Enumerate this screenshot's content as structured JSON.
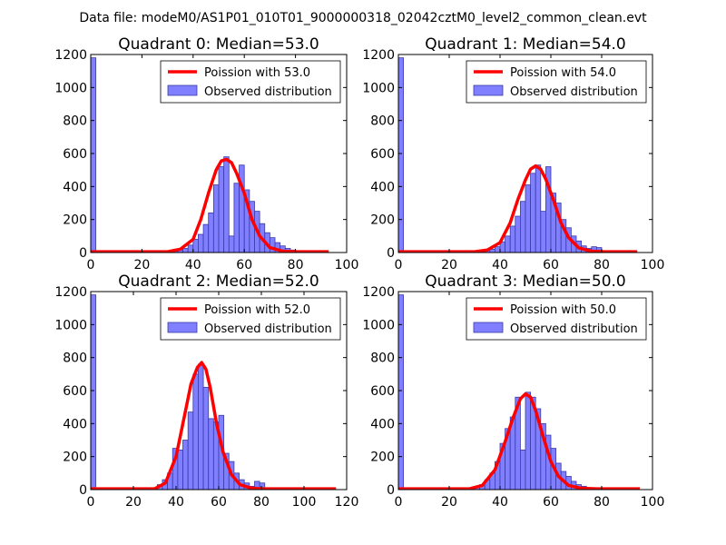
{
  "suptitle": "Data file: modeM0/AS1P01_010T01_9000000318_02042cztM0_level2_common_clean.evt",
  "colors": {
    "bar_fill": "#7f7fff",
    "bar_edge": "#3a3aa8",
    "poisson": "#ff0000"
  },
  "chart_data": [
    {
      "type": "bar",
      "title": "Quadrant 0: Median=53.0",
      "legend": {
        "poisson": "Poission with 53.0",
        "observed": "Observed distribution",
        "placement": "upper right"
      },
      "xlim": [
        0,
        100
      ],
      "ylim": [
        0,
        1200
      ],
      "xticks": [
        "0",
        "20",
        "40",
        "60",
        "80",
        "100"
      ],
      "yticks": [
        "0",
        "200",
        "400",
        "600",
        "800",
        "1000",
        "1200"
      ],
      "bin_width": 2,
      "bins": [
        [
          0,
          1180
        ],
        [
          30,
          5
        ],
        [
          32,
          10
        ],
        [
          34,
          15
        ],
        [
          36,
          25
        ],
        [
          38,
          45
        ],
        [
          40,
          80
        ],
        [
          42,
          110
        ],
        [
          44,
          170
        ],
        [
          46,
          240
        ],
        [
          48,
          410
        ],
        [
          50,
          520
        ],
        [
          52,
          580
        ],
        [
          54,
          100
        ],
        [
          56,
          420
        ],
        [
          58,
          530
        ],
        [
          60,
          380
        ],
        [
          62,
          310
        ],
        [
          64,
          250
        ],
        [
          66,
          175
        ],
        [
          68,
          120
        ],
        [
          70,
          90
        ],
        [
          72,
          60
        ],
        [
          74,
          40
        ],
        [
          76,
          25
        ],
        [
          78,
          15
        ],
        [
          80,
          8
        ],
        [
          82,
          5
        ]
      ],
      "poisson": {
        "x": [
          0,
          30,
          35,
          40,
          43,
          46,
          49,
          51,
          53,
          55,
          57,
          60,
          63,
          66,
          70,
          75,
          80,
          93
        ],
        "y": [
          5,
          5,
          20,
          80,
          200,
          360,
          500,
          555,
          565,
          545,
          480,
          360,
          200,
          100,
          30,
          8,
          5,
          5
        ]
      }
    },
    {
      "type": "bar",
      "title": "Quadrant 1: Median=54.0",
      "legend": {
        "poisson": "Poission with 54.0",
        "observed": "Observed distribution",
        "placement": "upper right"
      },
      "xlim": [
        0,
        100
      ],
      "ylim": [
        0,
        1200
      ],
      "xticks": [
        "0",
        "20",
        "40",
        "60",
        "80",
        "100"
      ],
      "yticks": [
        "0",
        "200",
        "400",
        "600",
        "800",
        "1000",
        "1200"
      ],
      "bin_width": 2,
      "bins": [
        [
          0,
          1180
        ],
        [
          30,
          5
        ],
        [
          32,
          8
        ],
        [
          34,
          12
        ],
        [
          36,
          20
        ],
        [
          38,
          35
        ],
        [
          40,
          65
        ],
        [
          42,
          100
        ],
        [
          44,
          160
        ],
        [
          46,
          220
        ],
        [
          48,
          310
        ],
        [
          50,
          410
        ],
        [
          52,
          480
        ],
        [
          54,
          530
        ],
        [
          56,
          250
        ],
        [
          58,
          520
        ],
        [
          60,
          360
        ],
        [
          62,
          300
        ],
        [
          64,
          200
        ],
        [
          66,
          150
        ],
        [
          68,
          100
        ],
        [
          70,
          70
        ],
        [
          72,
          40
        ],
        [
          74,
          25
        ],
        [
          76,
          35
        ],
        [
          78,
          30
        ],
        [
          80,
          10
        ],
        [
          82,
          5
        ]
      ],
      "poisson": {
        "x": [
          0,
          30,
          35,
          40,
          44,
          47,
          50,
          52,
          54,
          56,
          58,
          61,
          64,
          67,
          71,
          76,
          81,
          94
        ],
        "y": [
          5,
          5,
          15,
          60,
          180,
          320,
          440,
          505,
          525,
          505,
          445,
          320,
          180,
          90,
          28,
          8,
          5,
          5
        ]
      }
    },
    {
      "type": "bar",
      "title": "Quadrant 2: Median=52.0",
      "legend": {
        "poisson": "Poission with 52.0",
        "observed": "Observed distribution",
        "placement": "upper right"
      },
      "xlim": [
        0,
        120
      ],
      "ylim": [
        0,
        1200
      ],
      "xticks": [
        "0",
        "20",
        "40",
        "60",
        "80",
        "100",
        "120"
      ],
      "yticks": [
        "0",
        "200",
        "400",
        "600",
        "800",
        "1000",
        "1200"
      ],
      "bin_width": 2.4,
      "bins": [
        [
          0,
          1180
        ],
        [
          31.2,
          30
        ],
        [
          33.6,
          60
        ],
        [
          36,
          100
        ],
        [
          38.4,
          250
        ],
        [
          40.8,
          240
        ],
        [
          43.2,
          300
        ],
        [
          45.6,
          470
        ],
        [
          48,
          700
        ],
        [
          50.4,
          760
        ],
        [
          52.8,
          620
        ],
        [
          55.2,
          430
        ],
        [
          57.6,
          410
        ],
        [
          60,
          450
        ],
        [
          62.4,
          220
        ],
        [
          64.8,
          170
        ],
        [
          67.2,
          100
        ],
        [
          69.6,
          60
        ],
        [
          72,
          40
        ],
        [
          74.4,
          20
        ],
        [
          76.8,
          50
        ],
        [
          79.2,
          40
        ],
        [
          81.6,
          10
        ]
      ],
      "poisson": {
        "x": [
          0,
          30,
          35,
          40,
          44,
          47,
          50,
          52,
          54,
          56,
          59,
          62,
          66,
          70,
          75,
          80,
          90,
          115
        ],
        "y": [
          5,
          5,
          40,
          200,
          450,
          640,
          740,
          770,
          730,
          620,
          400,
          230,
          90,
          30,
          10,
          5,
          5,
          5
        ]
      }
    },
    {
      "type": "bar",
      "title": "Quadrant 3: Median=50.0",
      "legend": {
        "poisson": "Poission with 50.0",
        "observed": "Observed distribution",
        "placement": "upper right"
      },
      "xlim": [
        0,
        100
      ],
      "ylim": [
        0,
        1200
      ],
      "xticks": [
        "0",
        "20",
        "40",
        "60",
        "80",
        "100"
      ],
      "yticks": [
        "0",
        "200",
        "400",
        "600",
        "800",
        "1000",
        "1200"
      ],
      "bin_width": 2,
      "bins": [
        [
          0,
          1180
        ],
        [
          30,
          15
        ],
        [
          32,
          30
        ],
        [
          34,
          60
        ],
        [
          36,
          100
        ],
        [
          38,
          170
        ],
        [
          40,
          280
        ],
        [
          42,
          370
        ],
        [
          44,
          440
        ],
        [
          46,
          560
        ],
        [
          48,
          240
        ],
        [
          50,
          590
        ],
        [
          52,
          560
        ],
        [
          54,
          490
        ],
        [
          56,
          400
        ],
        [
          58,
          330
        ],
        [
          60,
          250
        ],
        [
          62,
          160
        ],
        [
          64,
          110
        ],
        [
          66,
          80
        ],
        [
          68,
          50
        ],
        [
          70,
          30
        ],
        [
          72,
          20
        ],
        [
          74,
          10
        ]
      ],
      "poisson": {
        "x": [
          0,
          28,
          33,
          38,
          42,
          45,
          48,
          50,
          52,
          54,
          57,
          60,
          63,
          67,
          72,
          78,
          95
        ],
        "y": [
          5,
          5,
          25,
          120,
          290,
          430,
          550,
          580,
          560,
          480,
          320,
          170,
          80,
          25,
          8,
          5,
          5
        ]
      }
    }
  ]
}
